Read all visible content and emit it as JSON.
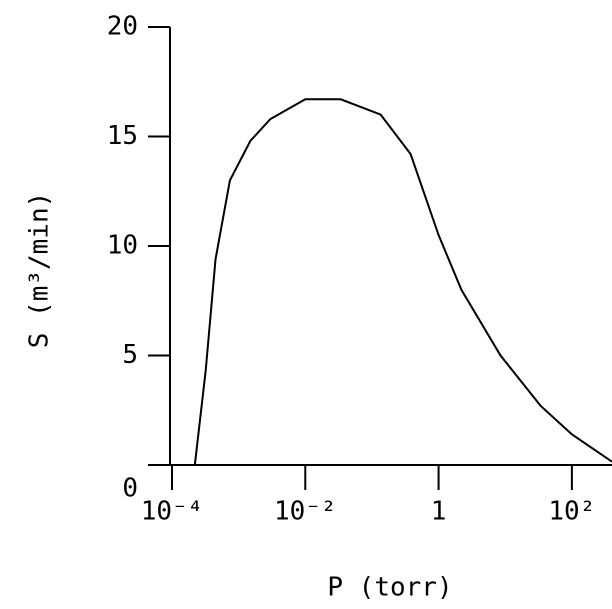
{
  "chart_data": {
    "type": "line",
    "xlabel": "P (torr)",
    "ylabel": "S (m³/min)",
    "x": [
      0.00022,
      0.00032,
      0.00045,
      0.00074,
      0.0015,
      0.003,
      0.01,
      0.034,
      0.135,
      0.38,
      1,
      2.2,
      8.5,
      34,
      100,
      400
    ],
    "values": [
      0,
      4.3,
      9.4,
      13,
      14.8,
      15.8,
      16.7,
      16.7,
      16,
      14.2,
      10.5,
      8,
      5,
      2.7,
      1.4,
      0.15
    ],
    "color": "#000000",
    "xscale": "log",
    "xlim": [
      0.0001,
      400
    ],
    "xticks": [
      {
        "value": 0.0001,
        "label": "10⁻⁴"
      },
      {
        "value": 0.01,
        "label": "10⁻²"
      },
      1,
      {
        "value": 100,
        "label": "10²"
      }
    ],
    "ylim": [
      0,
      20
    ],
    "yticks": [
      0,
      5,
      10,
      15,
      20
    ],
    "grid": false
  }
}
